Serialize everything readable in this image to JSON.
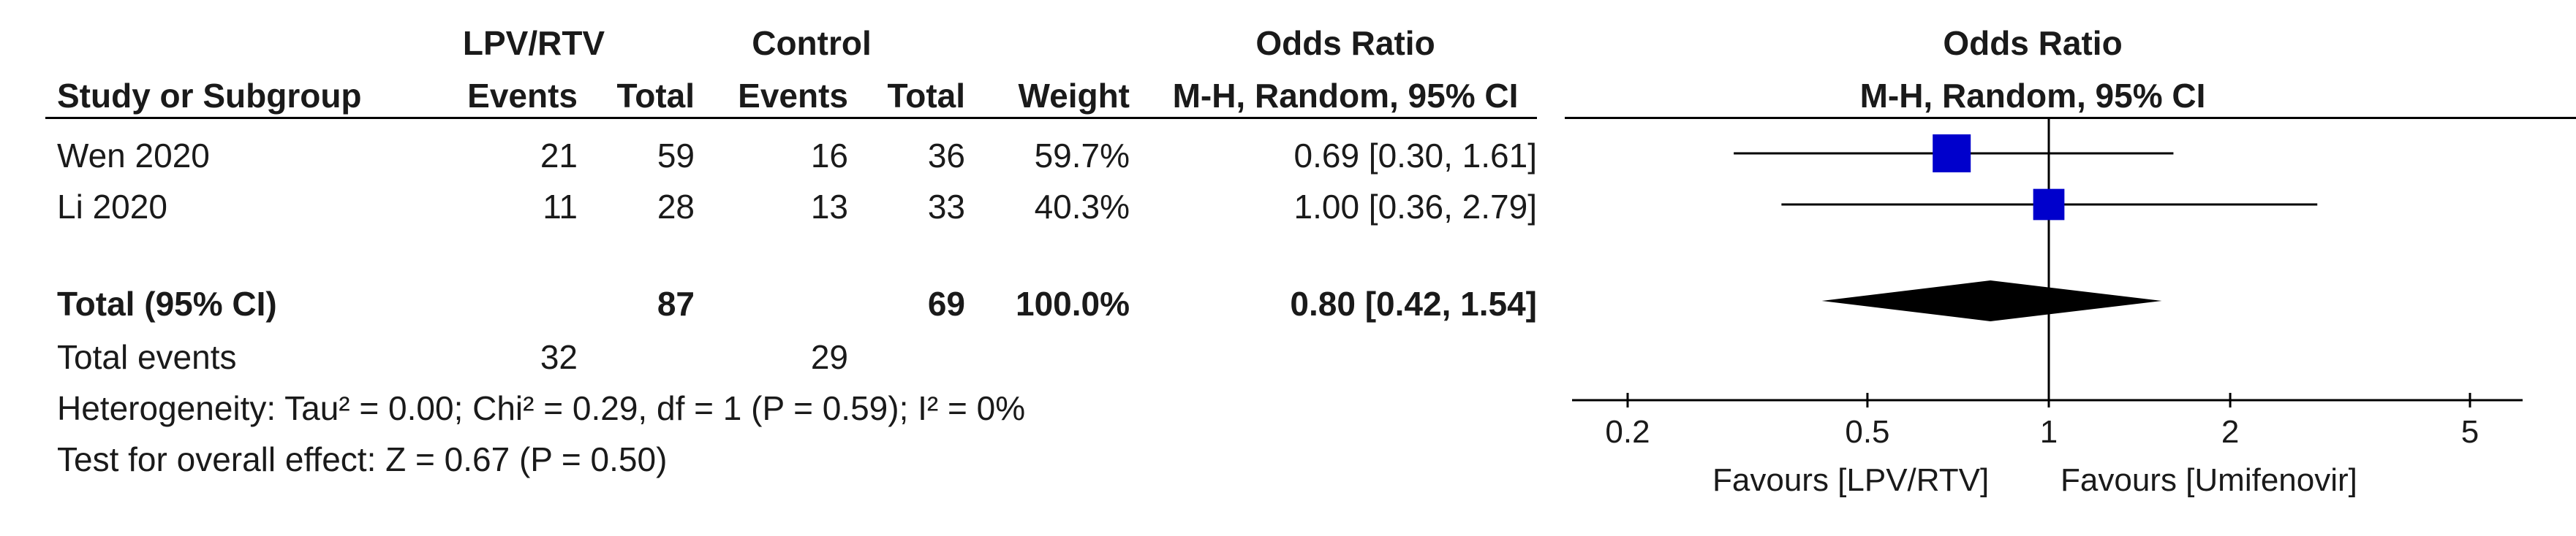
{
  "headers": {
    "group_exp": "LPV/RTV",
    "group_ctrl": "Control",
    "or_top": "Odds Ratio",
    "or_sub": "M-H, Random, 95% CI",
    "study": "Study or Subgroup",
    "events": "Events",
    "total": "Total",
    "weight": "Weight",
    "plot_top": "Odds Ratio",
    "plot_sub": "M-H, Random, 95% CI"
  },
  "studies": [
    {
      "name": "Wen 2020",
      "exp_events": "21",
      "exp_total": "59",
      "ctrl_events": "16",
      "ctrl_total": "36",
      "weight": "59.7%",
      "ci_text": "0.69 [0.30, 1.61]"
    },
    {
      "name": "Li 2020",
      "exp_events": "11",
      "exp_total": "28",
      "ctrl_events": "13",
      "ctrl_total": "33",
      "weight": "40.3%",
      "ci_text": "1.00 [0.36, 2.79]"
    }
  ],
  "total_row": {
    "label": "Total (95% CI)",
    "exp_total": "87",
    "ctrl_total": "69",
    "weight": "100.0%",
    "ci_text": "0.80 [0.42, 1.54]"
  },
  "events_row": {
    "label": "Total events",
    "exp_events": "32",
    "ctrl_events": "29"
  },
  "heterogeneity": "Heterogeneity: Tau² = 0.00; Chi² = 0.29, df = 1 (P = 0.59); I² = 0%",
  "overall_effect": "Test for overall effect: Z = 0.67 (P = 0.50)",
  "favours_left": "Favours [LPV/RTV]",
  "favours_right": "Favours [Umifenovir]",
  "colors": {
    "marker": "#0000cc",
    "diamond": "#000000",
    "line": "#000000"
  },
  "chart_data": {
    "type": "forest",
    "scale": "log",
    "xlim": [
      0.2,
      5
    ],
    "ticks": [
      0.2,
      0.5,
      1,
      2,
      5
    ],
    "tick_labels": [
      "0.2",
      "0.5",
      "1",
      "2",
      "5"
    ],
    "reference_line": 1,
    "studies": [
      {
        "name": "Wen 2020",
        "or": 0.69,
        "lower": 0.3,
        "upper": 1.61,
        "weight": 59.7
      },
      {
        "name": "Li 2020",
        "or": 1.0,
        "lower": 0.36,
        "upper": 2.79,
        "weight": 40.3
      }
    ],
    "pooled": {
      "or": 0.8,
      "lower": 0.42,
      "upper": 1.54
    }
  }
}
